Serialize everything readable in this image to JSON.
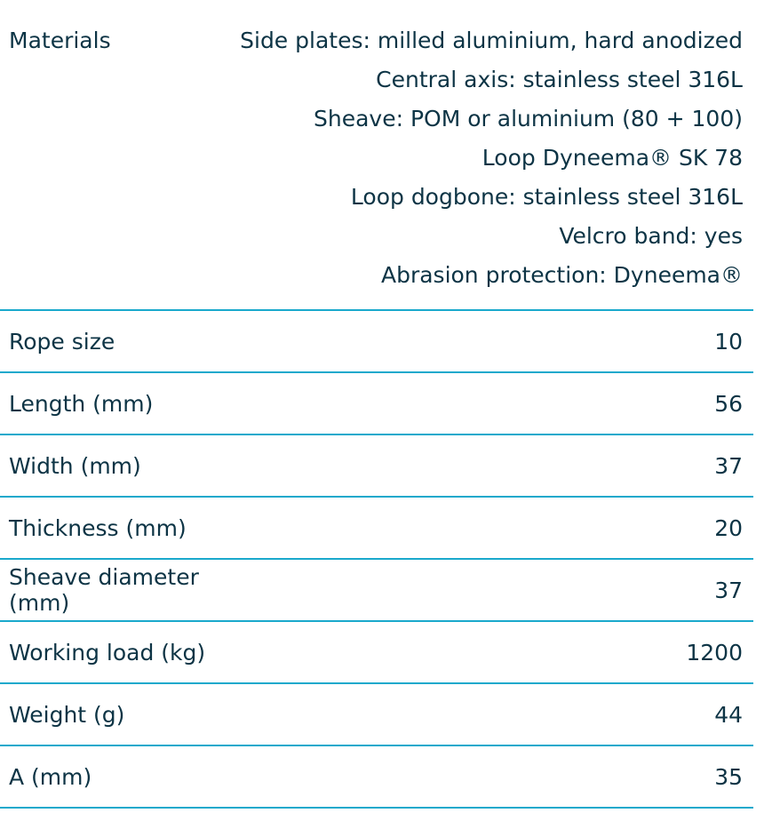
{
  "materials": {
    "label": "Materials",
    "lines": [
      "Side plates: milled aluminium, hard anodized",
      "Central axis: stainless steel 316L",
      "Sheave: POM or aluminium (80 + 100)",
      "Loop Dyneema® SK 78",
      "Loop dogbone: stainless steel 316L",
      "Velcro band: yes",
      "Abrasion protection: Dyneema®"
    ]
  },
  "rows": [
    {
      "label": "Rope size",
      "value": "10"
    },
    {
      "label": "Length (mm)",
      "value": "56"
    },
    {
      "label": "Width (mm)",
      "value": "37"
    },
    {
      "label": "Thickness (mm)",
      "value": "20"
    },
    {
      "label": "Sheave diameter (mm)",
      "value": "37"
    },
    {
      "label": "Working load (kg)",
      "value": "1200"
    },
    {
      "label": "Weight (g)",
      "value": "44"
    },
    {
      "label": "A (mm)",
      "value": "35"
    }
  ],
  "colors": {
    "text": "#0d3445",
    "divider": "#1aa9cc"
  }
}
